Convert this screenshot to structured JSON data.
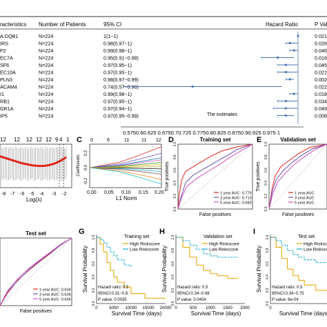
{
  "forest": {
    "headers": {
      "characteristics": "racteristics",
      "n_patients": "Number of Patients",
      "ci": "95% CI",
      "hr": "Hazard Ratio",
      "pval": "P Val"
    },
    "rows": [
      {
        "gene": "A.DQB1",
        "n": "N=224",
        "ci": "1(1~1)",
        "hr": 1.0,
        "lo": 1.0,
        "hi": 1.0,
        "p": "0.021"
      },
      {
        "gene": "IRS",
        "n": "N=224",
        "ci": "0.98(0.97~1)",
        "hr": 0.98,
        "lo": 0.97,
        "hi": 1.0,
        "p": "0.026"
      },
      {
        "gene": "P2",
        "n": "N=224",
        "ci": "0.99(0.98~1)",
        "hr": 0.99,
        "lo": 0.98,
        "hi": 1.0,
        "p": "0.046"
      },
      {
        "gene": "EC7A",
        "n": "N=224",
        "ci": "0.95(0.91~0.99)",
        "hr": 0.95,
        "lo": 0.91,
        "hi": 0.99,
        "p": "0.016"
      },
      {
        "gene": "SF6",
        "n": "N=224",
        "ci": "0.97(0.95~1)",
        "hr": 0.97,
        "lo": 0.95,
        "hi": 1.0,
        "p": "0.045"
      },
      {
        "gene": "EC10A",
        "n": "N=224",
        "ci": "0.97(0.95~1)",
        "hr": 0.97,
        "lo": 0.95,
        "hi": 1.0,
        "p": "0.021"
      },
      {
        "gene": "PLN3",
        "n": "N=224",
        "ci": "0.98(0.97~0.99)",
        "hr": 0.98,
        "lo": 0.97,
        "hi": 0.99,
        "p": "0.002"
      },
      {
        "gene": "ACAM4",
        "n": "N=224",
        "ci": "0.74(0.57~0.96)",
        "hr": 0.74,
        "lo": 0.57,
        "hi": 0.96,
        "p": "0.022"
      },
      {
        "gene": "I1",
        "n": "N=224",
        "ci": "0.99(0.98~1)",
        "hr": 0.99,
        "lo": 0.98,
        "hi": 1.0,
        "p": "0.018"
      },
      {
        "gene": "RB1",
        "n": "N=224",
        "ci": "0.97(0.95~1)",
        "hr": 0.97,
        "lo": 0.95,
        "hi": 1.0,
        "p": "0.034"
      },
      {
        "gene": "GR1A",
        "n": "N=224",
        "ci": "0.97(0.94~1)",
        "hr": 0.97,
        "lo": 0.94,
        "hi": 1.0,
        "p": "0.049"
      },
      {
        "gene": "IP5",
        "n": "N=224",
        "ci": "0.97(0.95~0.99)",
        "hr": 0.97,
        "lo": 0.95,
        "hi": 0.99,
        "p": "0.008"
      }
    ],
    "ticks": [
      "0.575",
      "0.6",
      "0.625",
      "0.65",
      "0.675",
      "0.7",
      "0.725",
      "0.75",
      "0.775",
      "0.8",
      "0.825",
      "0.85",
      "0.875",
      "0.9",
      "0.925",
      "0.95",
      "0.975",
      "1"
    ],
    "tick_line": "0.5750.60.625  0.6750.70.725  0.7750.80.825  0.8750.90.925  0.975  1",
    "xlabel": "The estimates",
    "xlim": [
      0.575,
      1.0
    ]
  },
  "panel_labels": {
    "c": "C",
    "d": "D",
    "e": "E",
    "g": "G",
    "h": "H",
    "i": "I"
  },
  "lasso_cv": {
    "top_ticks": [
      "12",
      "12",
      "12",
      "12",
      "12",
      "9",
      "4",
      "1"
    ],
    "xticks": [
      "-8",
      "-7",
      "-6",
      "-5",
      "-4",
      "-3",
      "-2"
    ],
    "xlabel": "Log(λ)"
  },
  "lasso_path": {
    "top_ticks": [
      "0",
      "6",
      "11",
      "11",
      "12"
    ],
    "xticks": [
      "0.00",
      "0.05",
      "0.10",
      "0.15",
      "0.20"
    ],
    "yticks": [
      "0.2",
      "0.0",
      "-0.2"
    ],
    "xlabel": "L1 Norm",
    "ylabel": "Coefficients"
  },
  "roc": [
    {
      "key": "train",
      "title": "Training set",
      "xlabel": "False positives",
      "ylabel": "True positives",
      "legend": [
        "1 year AUC: 0.776",
        "3 year AUC: 0.713",
        "5 year AUC: 0.683"
      ],
      "yticks": [
        "0.0",
        "0.2",
        "0.4",
        "0.6",
        "0.8",
        "1.0"
      ]
    },
    {
      "key": "val",
      "title": "Validation set",
      "xlabel": "False positives",
      "ylabel": "True positives",
      "legend": [
        "1 year AUC",
        "3 year AUC",
        "5 year AUC"
      ],
      "yticks": [
        "0.0",
        "0.2",
        "0.4",
        "0.6",
        "0.8",
        "1.0"
      ]
    },
    {
      "key": "test",
      "title": "Test set",
      "xlabel": "False positives",
      "ylabel": "",
      "legend": [
        "1 year AUC: 0.634",
        "3 year AUC: 0.636",
        "5 year AUC: 0.645"
      ],
      "yticks": []
    }
  ],
  "km": [
    {
      "key": "g",
      "title": "Training set",
      "legend": [
        "High Riskscore",
        "Low Riskscore"
      ],
      "hr_text": "Hazard ratio: 0.5",
      "ci_text": "95%CI:0.31~0.8",
      "p_text": "P value: 0.0035",
      "xticks": [
        "0",
        "5000",
        "10000",
        "15000",
        "20000"
      ],
      "xlabel": "Survival Time (days)",
      "ylabel": "Survival Probability",
      "yticks": [
        "0.0",
        "0.2",
        "0.4",
        "0.6",
        "0.8",
        "1.0"
      ]
    },
    {
      "key": "h",
      "title": "Validation set",
      "legend": [
        "High Riskscore",
        "Low Riskscore"
      ],
      "hr_text": "Hazard ratio: 0.5",
      "ci_text": "95%CI:0.34~0.98",
      "p_text": "P value: 0.0404",
      "xticks": [
        "0",
        "500",
        "1000",
        "1500",
        "2000"
      ],
      "xlabel": "Survival Time (days)",
      "ylabel": "Survival Probability",
      "yticks": [
        "0.0",
        "0.2",
        "0.4",
        "0.6",
        "0.8",
        "1.0"
      ]
    },
    {
      "key": "i",
      "title": "Test set",
      "legend": [
        "High Riskscore",
        "Low Riskscore"
      ],
      "hr_text": "Hazard ratio: 0.5",
      "ci_text": "95%CI:0.34~0.75",
      "p_text": "P value: 6e-04",
      "xticks": [
        "0"
      ],
      "xlabel": "Survival Time (days)",
      "ylabel": "Survival Probability",
      "yticks": [
        "0.0",
        "0.2",
        "0.4",
        "0.6",
        "0.8",
        "1.0"
      ]
    }
  ],
  "colors": {
    "forest": "#4a74b4",
    "cv_line": "#e2231a",
    "roc_1yr": "#e2231a",
    "roc_3yr": "#6a4fb0",
    "roc_5yr": "#d04fc4",
    "km_high": "#e8b01f",
    "km_low": "#32b5d7"
  },
  "chart_data": [
    {
      "type": "forest",
      "title": "",
      "xlabel": "The estimates",
      "categories": [
        "A.DQB1",
        "IRS",
        "P2",
        "EC7A",
        "SF6",
        "EC10A",
        "PLN3",
        "ACAM4",
        "I1",
        "RB1",
        "GR1A",
        "IP5"
      ],
      "hr": [
        1.0,
        0.98,
        0.99,
        0.95,
        0.97,
        0.97,
        0.98,
        0.74,
        0.99,
        0.97,
        0.97,
        0.97
      ],
      "ci_low": [
        1.0,
        0.97,
        0.98,
        0.91,
        0.95,
        0.95,
        0.97,
        0.57,
        0.98,
        0.95,
        0.94,
        0.95
      ],
      "ci_high": [
        1.0,
        1.0,
        1.0,
        0.99,
        1.0,
        1.0,
        0.99,
        0.96,
        1.0,
        1.0,
        1.0,
        0.99
      ],
      "p": [
        0.021,
        0.026,
        0.046,
        0.016,
        0.045,
        0.021,
        0.002,
        0.022,
        0.018,
        0.034,
        0.049,
        0.008
      ],
      "xlim": [
        0.575,
        1.0
      ]
    },
    {
      "type": "line",
      "title": "",
      "xlabel": "Log(λ)",
      "xlim": [
        -8,
        -1.5
      ],
      "ylim": [
        0,
        1
      ],
      "series": [
        {
          "x": [
            -8,
            -7,
            -6,
            -5,
            -4.5,
            -4,
            -3.5,
            -3,
            -2.5,
            -2
          ],
          "y": [
            0.72,
            0.64,
            0.56,
            0.51,
            0.5,
            0.5,
            0.52,
            0.56,
            0.62,
            0.7
          ]
        }
      ]
    },
    {
      "type": "line",
      "title": "",
      "xlabel": "L1 Norm",
      "ylabel": "Coefficients",
      "xlim": [
        0,
        0.2
      ],
      "ylim": [
        -0.3,
        0.4
      ]
    },
    {
      "type": "line",
      "title": "Training set",
      "xlabel": "False positives",
      "ylabel": "True positives",
      "xlim": [
        0,
        1
      ],
      "ylim": [
        0,
        1
      ],
      "series": [
        {
          "name": "1 year AUC: 0.776",
          "x": [
            0,
            0.02,
            0.05,
            0.1,
            0.2,
            0.3,
            0.45,
            0.6,
            0.8,
            1
          ],
          "y": [
            0,
            0.25,
            0.45,
            0.58,
            0.65,
            0.72,
            0.82,
            0.9,
            0.96,
            1
          ]
        },
        {
          "name": "3 year AUC: 0.713",
          "x": [
            0,
            0.05,
            0.1,
            0.2,
            0.35,
            0.5,
            0.65,
            0.8,
            1
          ],
          "y": [
            0,
            0.22,
            0.4,
            0.52,
            0.62,
            0.72,
            0.82,
            0.92,
            1
          ]
        },
        {
          "name": "5 year AUC: 0.683",
          "x": [
            0,
            0.05,
            0.12,
            0.25,
            0.4,
            0.55,
            0.7,
            0.85,
            1
          ],
          "y": [
            0,
            0.18,
            0.35,
            0.47,
            0.58,
            0.68,
            0.8,
            0.9,
            1
          ]
        }
      ]
    },
    {
      "type": "line",
      "title": "Validation set",
      "xlabel": "False positives",
      "ylabel": "True positives",
      "xlim": [
        0,
        1
      ],
      "ylim": [
        0,
        1
      ],
      "series": [
        {
          "name": "1 year AUC",
          "x": [
            0,
            0.05,
            0.1,
            0.2,
            0.35,
            0.5,
            0.7,
            1
          ],
          "y": [
            0,
            0.3,
            0.5,
            0.65,
            0.75,
            0.85,
            0.95,
            1
          ]
        },
        {
          "name": "3 year AUC",
          "x": [
            0,
            0.05,
            0.12,
            0.25,
            0.4,
            0.55,
            0.75,
            1
          ],
          "y": [
            0,
            0.25,
            0.45,
            0.6,
            0.72,
            0.82,
            0.93,
            1
          ]
        },
        {
          "name": "5 year AUC",
          "x": [
            0,
            0.06,
            0.15,
            0.3,
            0.45,
            0.6,
            0.8,
            1
          ],
          "y": [
            0,
            0.22,
            0.42,
            0.57,
            0.7,
            0.8,
            0.92,
            1
          ]
        }
      ]
    },
    {
      "type": "line",
      "title": "Test set",
      "xlabel": "False positives",
      "xlim": [
        0,
        1
      ],
      "ylim": [
        0,
        1
      ],
      "series": [
        {
          "name": "1 year AUC: 0.634",
          "x": [
            0,
            0.1,
            0.25,
            0.4,
            0.55,
            0.7,
            0.85,
            1
          ],
          "y": [
            0,
            0.18,
            0.38,
            0.52,
            0.65,
            0.77,
            0.9,
            1
          ]
        },
        {
          "name": "3 year AUC: 0.636",
          "x": [
            0,
            0.1,
            0.25,
            0.4,
            0.55,
            0.7,
            0.85,
            1
          ],
          "y": [
            0,
            0.2,
            0.37,
            0.53,
            0.66,
            0.78,
            0.9,
            1
          ]
        },
        {
          "name": "5 year AUC: 0.645",
          "x": [
            0,
            0.1,
            0.25,
            0.4,
            0.55,
            0.7,
            0.85,
            1
          ],
          "y": [
            0,
            0.21,
            0.4,
            0.55,
            0.67,
            0.79,
            0.91,
            1
          ]
        }
      ]
    },
    {
      "type": "line",
      "title": "Training set",
      "xlabel": "Survival Time (days)",
      "ylabel": "Survival Probability",
      "xlim": [
        0,
        20000
      ],
      "ylim": [
        0,
        1
      ],
      "series": [
        {
          "name": "High Riskscore",
          "x": [
            0,
            1000,
            2000,
            3000,
            4000,
            5000,
            6000,
            8000,
            10000,
            14000,
            20000
          ],
          "y": [
            1,
            0.9,
            0.78,
            0.62,
            0.5,
            0.4,
            0.32,
            0.25,
            0.15,
            0.08,
            0.08
          ]
        },
        {
          "name": "Low Riskscore",
          "x": [
            0,
            1000,
            2000,
            3000,
            4000,
            5000,
            6000,
            8000,
            10000
          ],
          "y": [
            1,
            0.97,
            0.92,
            0.85,
            0.78,
            0.72,
            0.66,
            0.58,
            0.55
          ]
        }
      ]
    },
    {
      "type": "line",
      "title": "Validation set",
      "xlabel": "Survival Time (days)",
      "ylabel": "Survival Probability",
      "xlim": [
        0,
        2000
      ],
      "ylim": [
        0,
        1
      ],
      "series": [
        {
          "name": "High Riskscore",
          "x": [
            0,
            200,
            400,
            600,
            800,
            1000,
            1200,
            1500,
            1800
          ],
          "y": [
            1,
            0.85,
            0.7,
            0.58,
            0.5,
            0.45,
            0.42,
            0.38,
            0.38
          ]
        },
        {
          "name": "Low Riskscore",
          "x": [
            0,
            200,
            400,
            600,
            800,
            1000,
            1200,
            1500,
            1800
          ],
          "y": [
            1,
            0.95,
            0.88,
            0.82,
            0.75,
            0.72,
            0.7,
            0.7,
            0.7
          ]
        }
      ]
    },
    {
      "type": "line",
      "title": "Test set",
      "xlabel": "Survival Time (days)",
      "ylabel": "Survival Probability",
      "ylim": [
        0,
        1
      ],
      "series": [
        {
          "name": "High Riskscore",
          "x": [
            0,
            0.1,
            0.2,
            0.3,
            0.4,
            0.5,
            0.6,
            0.8,
            1
          ],
          "y": [
            1,
            0.85,
            0.68,
            0.52,
            0.42,
            0.35,
            0.28,
            0.2,
            0.2
          ]
        },
        {
          "name": "Low Riskscore",
          "x": [
            0,
            0.1,
            0.2,
            0.3,
            0.4,
            0.5,
            0.6,
            0.8,
            1
          ],
          "y": [
            1,
            0.95,
            0.88,
            0.8,
            0.74,
            0.7,
            0.66,
            0.62,
            0.62
          ]
        }
      ]
    }
  ]
}
